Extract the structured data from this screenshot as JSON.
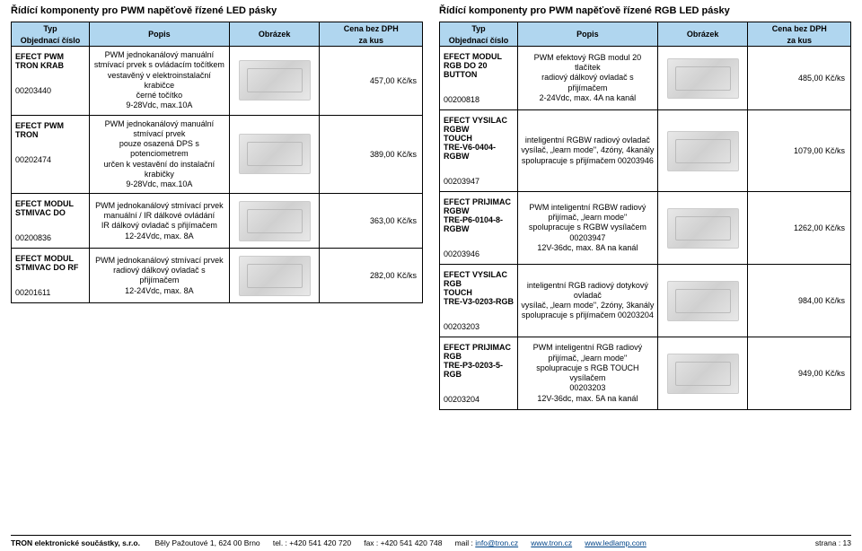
{
  "left": {
    "title": "Řídící komponenty pro PWM napěťově řízené LED pásky",
    "headers": {
      "typ": "Typ",
      "obj": "Objednací číslo",
      "popis": "Popis",
      "obrazek": "Obrázek",
      "cena_top": "Cena bez DPH",
      "cena_bot": "za kus"
    },
    "rows": [
      {
        "typ": "EFECT PWM TRON KRAB",
        "obj": "00203440",
        "popis": "PWM jednokanálový manuální\nstmívací prvek s ovládacím točítkem\nvestavěný v elektroinstalační krabičce\nčerné točítko\n9-28Vdc, max.10A",
        "cena": "457,00 Kč/ks"
      },
      {
        "typ": "EFECT PWM TRON",
        "obj": "00202474",
        "popis": "PWM jednokanálový manuální\nstmívací prvek\npouze osazená DPS s potenciometrem\nurčen k vestavění do instalační krabičky\n9-28Vdc, max.10A",
        "cena": "389,00 Kč/ks"
      },
      {
        "typ": "EFECT MODUL STMIVAC DO",
        "obj": "00200836",
        "popis": "PWM jednokanálový stmívací prvek\nmanuální / IR dálkové ovládání\nIR dálkový ovladač s přijímačem\n12-24Vdc, max. 8A",
        "cena": "363,00 Kč/ks"
      },
      {
        "typ": "EFECT MODUL STMIVAC DO RF",
        "obj": "00201611",
        "popis": "PWM jednokanálový stmívací prvek\nradiový dálkový ovladač s přijímačem\n12-24Vdc, max. 8A",
        "cena": "282,00 Kč/ks"
      }
    ]
  },
  "right": {
    "title": "Řídící komponenty pro PWM napěťově řízené RGB LED pásky",
    "headers": {
      "typ": "Typ",
      "obj": "Objednací číslo",
      "popis": "Popis",
      "obrazek": "Obrázek",
      "cena_top": "Cena bez DPH",
      "cena_bot": "za kus"
    },
    "rows": [
      {
        "typ": "EFECT MODUL RGB DO 20 BUTTON",
        "obj": "00200818",
        "popis": "PWM efektový RGB modul 20 tlačítek\nradiový dálkový ovladač s přijímačem\n2-24Vdc, max. 4A na kanál",
        "cena": "485,00 Kč/ks"
      },
      {
        "typ": "EFECT VYSILAC RGBW\nTOUCH\nTRE-V6-0404-RGBW",
        "obj": "00203947",
        "popis": "inteligentní RGBW radiový ovladač\nvysílač, „learn mode\", 4zóny, 4kanály\nspolupracuje s přijímačem 00203946",
        "cena": "1079,00 Kč/ks"
      },
      {
        "typ": "EFECT PRIJIMAC RGBW\nTRE-P6-0104-8-RGBW",
        "obj": "00203946",
        "popis": "PWM inteligentní RGBW radiový\npřijímač, „learn mode\"\nspolupracuje s RGBW vysílačem\n00203947\n12V-36dc, max. 8A na kanál",
        "cena": "1262,00 Kč/ks"
      },
      {
        "typ": "EFECT VYSILAC RGB\nTOUCH\nTRE-V3-0203-RGB",
        "obj": "00203203",
        "popis": "inteligentní RGB radiový dotykový\novladač\nvysílač, „learn mode\", 2zóny, 3kanály\nspolupracuje s přijímačem 00203204",
        "cena": "984,00 Kč/ks"
      },
      {
        "typ": "EFECT PRIJIMAC RGB\nTRE-P3-0203-5-RGB",
        "obj": "00203204",
        "popis": "PWM inteligentní RGB radiový\npřijímač, „learn mode\"\nspolupracuje s RGB TOUCH vysílačem\n00203203\n12V-36dc, max. 5A na kanál",
        "cena": "949,00 Kč/ks"
      }
    ]
  },
  "footer": {
    "company": "TRON elektronické součástky, s.r.o.",
    "address": "Běly Pažoutové 1, 624 00  Brno",
    "tel": "tel. : +420 541 420 720",
    "fax": "fax : +420 541 420 748",
    "mail_label": "mail :",
    "mail_value": "info@tron.cz",
    "web1": "www.tron.cz",
    "web2": "www.ledlamp.com",
    "page": "strana : 13"
  }
}
